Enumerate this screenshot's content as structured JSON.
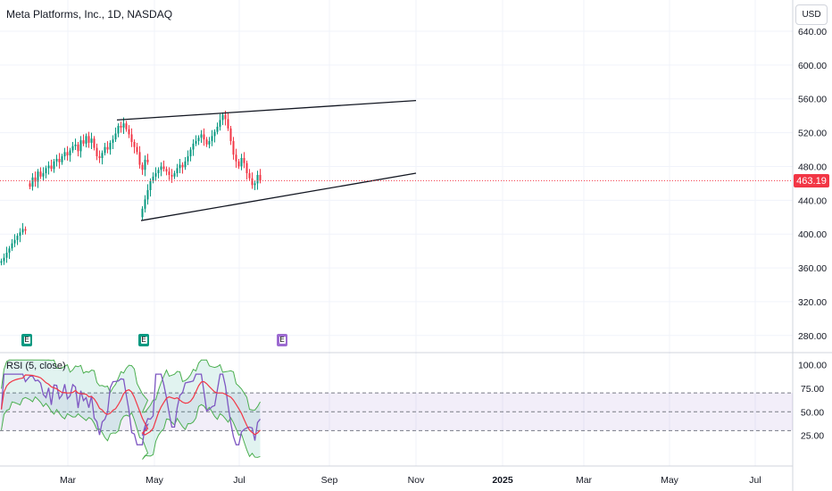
{
  "header": {
    "title": "Meta Platforms, Inc., 1D, NASDAQ",
    "currency": "USD"
  },
  "last_price": {
    "value": "463.19",
    "color": "#f23645"
  },
  "rsi": {
    "label": "RSI (5, close)",
    "ticks": [
      "100.00",
      "75.00",
      "50.00",
      "25.00"
    ]
  },
  "earnings": [
    {
      "label": "E",
      "color": "#089981",
      "x_index": 0
    },
    {
      "label": "E",
      "color": "#089981",
      "x_index": 1
    },
    {
      "label": "E",
      "color": "#9c6ad1",
      "x_index": 2
    }
  ],
  "colors": {
    "up": "#089981",
    "down": "#f23645",
    "rsi_line": "#7e57c2",
    "rsi_ma": "#f23645"
  },
  "chart_data": {
    "type": "candlestick",
    "title": "Meta Platforms, Inc., 1D, NASDAQ",
    "price_axis": {
      "ticks": [
        "640.00",
        "600.00",
        "560.00",
        "520.00",
        "480.00",
        "440.00",
        "400.00",
        "360.00",
        "320.00",
        "280.00"
      ],
      "ylim": [
        267,
        650
      ]
    },
    "time_axis": {
      "ticks": [
        "Mar",
        "May",
        "Jul",
        "Sep",
        "Nov",
        "2025",
        "Mar",
        "May",
        "Jul"
      ]
    },
    "series": [
      {
        "name": "close",
        "values": [
          368,
          372,
          378,
          383,
          389,
          393,
          398,
          402,
          406,
          404
        ]
      },
      {
        "name": "close",
        "values": [
          456,
          467,
          462,
          474,
          468,
          472,
          478,
          481,
          477,
          486,
          489,
          485,
          492,
          497,
          493,
          499,
          504,
          506,
          498,
          511,
          507,
          516,
          508,
          513,
          502,
          492,
          490,
          496,
          503,
          500,
          508,
          512,
          519,
          528,
          526,
          531,
          524,
          518,
          509,
          503,
          497,
          482,
          476,
          488,
          485
        ]
      },
      {
        "name": "close",
        "values": [
          430,
          441,
          452,
          463,
          468,
          472,
          476,
          480,
          477,
          474,
          470,
          468,
          472,
          478,
          482,
          479,
          486,
          492,
          500,
          507,
          510,
          514,
          518,
          512,
          506,
          510,
          516,
          521,
          527,
          535,
          541,
          536,
          525,
          510,
          494,
          486,
          480,
          490,
          484,
          472,
          466,
          458,
          460,
          470,
          463
        ]
      }
    ],
    "trendlines": [
      {
        "from": [
          "Apr 5",
          535
        ],
        "to": [
          "Nov 1",
          558
        ]
      },
      {
        "from": [
          "Apr 24",
          416
        ],
        "to": [
          "Nov 1",
          472
        ]
      }
    ],
    "rsi_scale": [
      0,
      110
    ]
  }
}
